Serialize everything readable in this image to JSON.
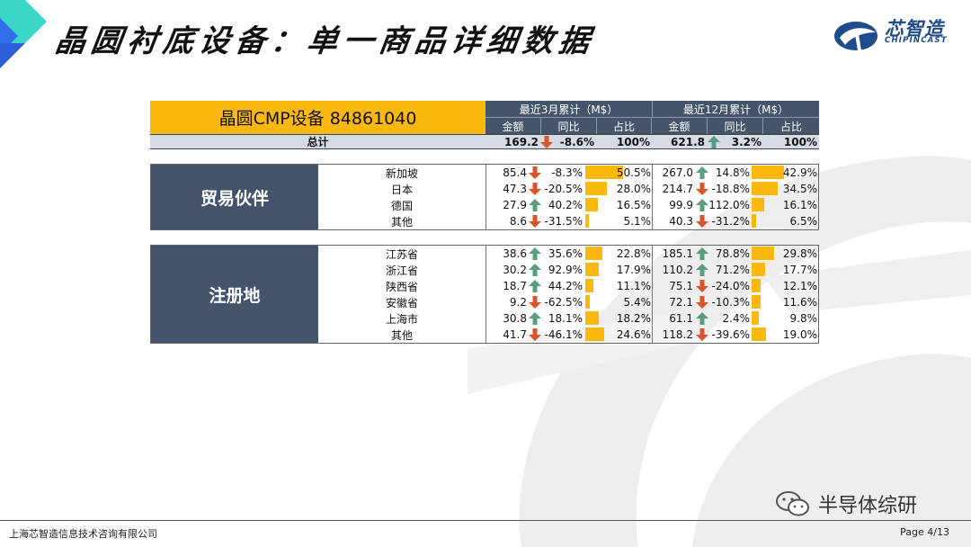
{
  "page": {
    "title": "晶圆衬底设备：单一商品详细数据",
    "logo_text": "芯智造",
    "logo_sub": "CHIPINCAST",
    "footer_company": "上海芯智造信息技术咨询有限公司",
    "footer_page": "Page 4/13",
    "wechat_name": "半导体综研"
  },
  "table": {
    "product": "晶圆CMP设备 84861040",
    "group1": "最近3月累计（M$）",
    "group2": "最近12月累计（M$）",
    "col_amount": "金额",
    "col_yoy": "同比",
    "col_share": "占比",
    "total": {
      "label": "总计",
      "m3_amount": "169.2",
      "m3_dir": "down",
      "m3_yoy": "-8.6%",
      "m3_share": "100%",
      "m12_amount": "621.8",
      "m12_dir": "up",
      "m12_yoy": "3.2%",
      "m12_share": "100%"
    },
    "sections": [
      {
        "label": "贸易伙伴",
        "rows": [
          {
            "name": "新加坡",
            "m3_amount": "85.4",
            "m3_dir": "down",
            "m3_yoy": "-8.3%",
            "m3_share": "50.5%",
            "m3_share_v": 0.505,
            "m12_amount": "267.0",
            "m12_dir": "up",
            "m12_yoy": "14.8%",
            "m12_share": "42.9%",
            "m12_share_v": 0.429
          },
          {
            "name": "日本",
            "m3_amount": "47.3",
            "m3_dir": "down",
            "m3_yoy": "-20.5%",
            "m3_share": "28.0%",
            "m3_share_v": 0.28,
            "m12_amount": "214.7",
            "m12_dir": "down",
            "m12_yoy": "-18.8%",
            "m12_share": "34.5%",
            "m12_share_v": 0.345
          },
          {
            "name": "德国",
            "m3_amount": "27.9",
            "m3_dir": "up",
            "m3_yoy": "40.2%",
            "m3_share": "16.5%",
            "m3_share_v": 0.165,
            "m12_amount": "99.9",
            "m12_dir": "up",
            "m12_yoy": "112.0%",
            "m12_share": "16.1%",
            "m12_share_v": 0.161
          },
          {
            "name": "其他",
            "m3_amount": "8.6",
            "m3_dir": "down",
            "m3_yoy": "-31.5%",
            "m3_share": "5.1%",
            "m3_share_v": 0.051,
            "m12_amount": "40.3",
            "m12_dir": "down",
            "m12_yoy": "-31.2%",
            "m12_share": "6.5%",
            "m12_share_v": 0.065
          }
        ]
      },
      {
        "label": "注册地",
        "rows": [
          {
            "name": "江苏省",
            "m3_amount": "38.6",
            "m3_dir": "up",
            "m3_yoy": "35.6%",
            "m3_share": "22.8%",
            "m3_share_v": 0.228,
            "m12_amount": "185.1",
            "m12_dir": "up",
            "m12_yoy": "78.8%",
            "m12_share": "29.8%",
            "m12_share_v": 0.298
          },
          {
            "name": "浙江省",
            "m3_amount": "30.2",
            "m3_dir": "up",
            "m3_yoy": "92.9%",
            "m3_share": "17.9%",
            "m3_share_v": 0.179,
            "m12_amount": "110.2",
            "m12_dir": "up",
            "m12_yoy": "71.2%",
            "m12_share": "17.7%",
            "m12_share_v": 0.177
          },
          {
            "name": "陕西省",
            "m3_amount": "18.7",
            "m3_dir": "up",
            "m3_yoy": "44.2%",
            "m3_share": "11.1%",
            "m3_share_v": 0.111,
            "m12_amount": "75.1",
            "m12_dir": "down",
            "m12_yoy": "-24.0%",
            "m12_share": "12.1%",
            "m12_share_v": 0.121
          },
          {
            "name": "安徽省",
            "m3_amount": "9.2",
            "m3_dir": "down",
            "m3_yoy": "-62.5%",
            "m3_share": "5.4%",
            "m3_share_v": 0.054,
            "m12_amount": "72.1",
            "m12_dir": "down",
            "m12_yoy": "-10.3%",
            "m12_share": "11.6%",
            "m12_share_v": 0.116
          },
          {
            "name": "上海市",
            "m3_amount": "30.8",
            "m3_dir": "up",
            "m3_yoy": "18.1%",
            "m3_share": "18.2%",
            "m3_share_v": 0.182,
            "m12_amount": "61.1",
            "m12_dir": "up",
            "m12_yoy": "2.4%",
            "m12_share": "9.8%",
            "m12_share_v": 0.098
          },
          {
            "name": "其他",
            "m3_amount": "41.7",
            "m3_dir": "down",
            "m3_yoy": "-46.1%",
            "m3_share": "24.6%",
            "m3_share_v": 0.246,
            "m12_amount": "118.2",
            "m12_dir": "down",
            "m12_yoy": "-39.6%",
            "m12_share": "19.0%",
            "m12_share_v": 0.19
          }
        ]
      }
    ]
  },
  "colors": {
    "header_dark": "#44546a",
    "header_yellow": "#fbb90f",
    "up_arrow": "#5a9e7e",
    "down_arrow": "#d9532b",
    "logo_blue": "#1e4c8a"
  }
}
